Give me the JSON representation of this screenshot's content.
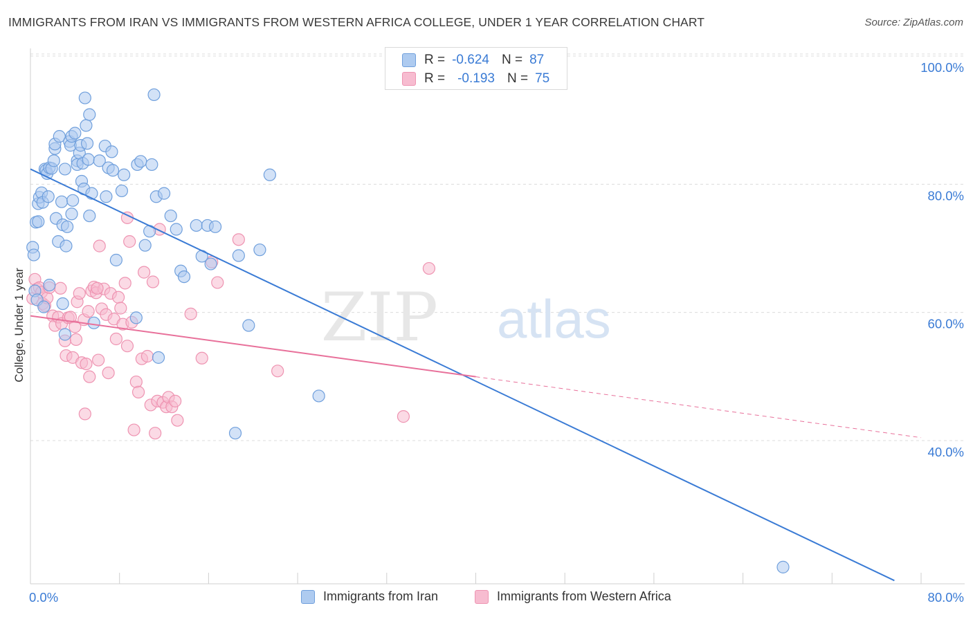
{
  "header": {
    "title": "IMMIGRANTS FROM IRAN VS IMMIGRANTS FROM WESTERN AFRICA COLLEGE, UNDER 1 YEAR CORRELATION CHART",
    "source": "Source: ZipAtlas.com"
  },
  "watermark": {
    "zip": "ZIP",
    "atlas": "atlas"
  },
  "legend_top": {
    "rows": [
      {
        "r_label": "R =",
        "r_value": "-0.624",
        "n_label": "N =",
        "n_value": "87"
      },
      {
        "r_label": "R =",
        "r_value": "-0.193",
        "n_label": "N =",
        "n_value": "75"
      }
    ]
  },
  "legend_bottom": {
    "items": [
      "Immigrants from Iran",
      "Immigrants from Western Africa"
    ]
  },
  "colors": {
    "blue_fill": "#aecbf0",
    "blue_stroke": "#6f9fdc",
    "blue_line": "#3a7bd5",
    "pink_fill": "#f7bcd0",
    "pink_stroke": "#ee93b1",
    "pink_line": "#e8709a",
    "grid": "#dcdcdc",
    "axis_text": "#3a7bd5"
  },
  "chart_data": {
    "type": "scatter",
    "title": "IMMIGRANTS FROM IRAN VS IMMIGRANTS FROM WESTERN AFRICA COLLEGE, UNDER 1 YEAR CORRELATION CHART",
    "xlabel": "",
    "ylabel": "College, Under 1 year",
    "xlim": [
      0,
      80
    ],
    "ylim": [
      20,
      102
    ],
    "x_tick_labels": [
      "0.0%",
      "80.0%"
    ],
    "y_ticks": [
      40,
      60,
      80,
      100
    ],
    "y_tick_labels": [
      "40.0%",
      "60.0%",
      "80.0%",
      "100.0%"
    ],
    "grid": true,
    "legend_position": "top-center",
    "series": [
      {
        "name": "Immigrants from Iran",
        "R": -0.624,
        "N": 87,
        "trend": {
          "x": [
            0,
            77.6
          ],
          "y": [
            84.2,
            20.0
          ]
        },
        "points": [
          [
            0.2,
            72
          ],
          [
            0.3,
            70.8
          ],
          [
            0.5,
            75.9
          ],
          [
            0.7,
            76
          ],
          [
            0.7,
            78.8
          ],
          [
            0.8,
            79.8
          ],
          [
            1.0,
            80.5
          ],
          [
            1.1,
            79
          ],
          [
            1.3,
            84.2
          ],
          [
            1.4,
            84
          ],
          [
            1.5,
            83.5
          ],
          [
            1.6,
            79.9
          ],
          [
            1.7,
            84.4
          ],
          [
            1.9,
            84.3
          ],
          [
            2.1,
            85.5
          ],
          [
            2.2,
            87.4
          ],
          [
            2.2,
            88.1
          ],
          [
            2.3,
            76.5
          ],
          [
            2.5,
            72.9
          ],
          [
            2.6,
            89.3
          ],
          [
            2.8,
            79.1
          ],
          [
            2.9,
            75.5
          ],
          [
            3.1,
            84.2
          ],
          [
            3.2,
            72.2
          ],
          [
            3.3,
            75.2
          ],
          [
            3.5,
            88.5
          ],
          [
            3.6,
            87.9
          ],
          [
            3.7,
            89.3
          ],
          [
            3.7,
            77.2
          ],
          [
            3.8,
            79.3
          ],
          [
            4.0,
            89.8
          ],
          [
            4.2,
            85.5
          ],
          [
            4.2,
            84.9
          ],
          [
            4.4,
            86.7
          ],
          [
            4.5,
            87.9
          ],
          [
            4.6,
            82.3
          ],
          [
            4.7,
            85.1
          ],
          [
            4.8,
            81.1
          ],
          [
            4.9,
            95.3
          ],
          [
            5.0,
            91
          ],
          [
            5.1,
            88.2
          ],
          [
            5.2,
            85.7
          ],
          [
            5.3,
            92.7
          ],
          [
            5.3,
            76.9
          ],
          [
            5.5,
            80.4
          ],
          [
            5.7,
            60.2
          ],
          [
            6.2,
            85.5
          ],
          [
            6.7,
            87.8
          ],
          [
            6.8,
            79.9
          ],
          [
            7.0,
            84.4
          ],
          [
            7.3,
            86.9
          ],
          [
            7.4,
            84
          ],
          [
            7.7,
            70
          ],
          [
            8.2,
            80.8
          ],
          [
            8.4,
            83.3
          ],
          [
            9.5,
            61
          ],
          [
            9.6,
            84.9
          ],
          [
            9.9,
            85.4
          ],
          [
            10.3,
            72.3
          ],
          [
            10.7,
            74.5
          ],
          [
            10.9,
            84.9
          ],
          [
            11.1,
            95.8
          ],
          [
            11.3,
            79.9
          ],
          [
            11.5,
            54.8
          ],
          [
            12.0,
            80.4
          ],
          [
            12.6,
            76.9
          ],
          [
            13.1,
            74.8
          ],
          [
            13.5,
            68.3
          ],
          [
            13.8,
            67.4
          ],
          [
            14.9,
            75.4
          ],
          [
            15.4,
            70.6
          ],
          [
            15.9,
            75.4
          ],
          [
            16.2,
            69.4
          ],
          [
            16.6,
            75.2
          ],
          [
            18.4,
            43
          ],
          [
            18.7,
            70.7
          ],
          [
            19.6,
            59.8
          ],
          [
            20.6,
            71.6
          ],
          [
            21.5,
            83.3
          ],
          [
            25.9,
            48.8
          ],
          [
            67.6,
            22.1
          ],
          [
            0.4,
            65.2
          ],
          [
            0.6,
            63.8
          ],
          [
            1.2,
            62.7
          ],
          [
            1.7,
            66.1
          ],
          [
            2.9,
            63.2
          ],
          [
            3.1,
            58.4
          ]
        ]
      },
      {
        "name": "Immigrants from Western Africa",
        "R": -0.193,
        "N": 75,
        "trend": {
          "x": [
            0,
            40
          ],
          "y": [
            61.3,
            51.8
          ]
        },
        "trend_dashed_extension": {
          "x": [
            40,
            80
          ],
          "y": [
            51.8,
            42.3
          ]
        },
        "points": [
          [
            0.2,
            64
          ],
          [
            0.4,
            67
          ],
          [
            0.6,
            65.5
          ],
          [
            0.8,
            65.7
          ],
          [
            1.0,
            65
          ],
          [
            1.1,
            63.2
          ],
          [
            1.3,
            62.9
          ],
          [
            1.5,
            64.1
          ],
          [
            1.7,
            65.7
          ],
          [
            2.0,
            61.3
          ],
          [
            2.2,
            59.8
          ],
          [
            2.5,
            61.1
          ],
          [
            2.8,
            60.1
          ],
          [
            3.1,
            57.4
          ],
          [
            3.2,
            55.1
          ],
          [
            3.4,
            61
          ],
          [
            3.6,
            61.1
          ],
          [
            3.8,
            54.8
          ],
          [
            4.0,
            59.6
          ],
          [
            4.2,
            63.5
          ],
          [
            4.4,
            64.8
          ],
          [
            4.6,
            54
          ],
          [
            4.8,
            60.7
          ],
          [
            4.9,
            46
          ],
          [
            5.0,
            53.8
          ],
          [
            5.2,
            62
          ],
          [
            5.3,
            51.8
          ],
          [
            5.5,
            65.2
          ],
          [
            5.7,
            65.8
          ],
          [
            5.9,
            64.9
          ],
          [
            6.1,
            54.4
          ],
          [
            6.2,
            72.2
          ],
          [
            6.4,
            62.4
          ],
          [
            6.6,
            65.5
          ],
          [
            6.8,
            61.5
          ],
          [
            7.0,
            52.4
          ],
          [
            7.2,
            64.8
          ],
          [
            7.5,
            60.8
          ],
          [
            7.7,
            57.7
          ],
          [
            7.9,
            64.2
          ],
          [
            8.1,
            62.5
          ],
          [
            8.3,
            60
          ],
          [
            8.5,
            66.4
          ],
          [
            8.7,
            56.6
          ],
          [
            8.9,
            72.9
          ],
          [
            9.1,
            60.3
          ],
          [
            9.3,
            43.5
          ],
          [
            9.5,
            51
          ],
          [
            9.7,
            49.4
          ],
          [
            10.0,
            54.6
          ],
          [
            10.2,
            68.1
          ],
          [
            10.5,
            55
          ],
          [
            10.8,
            47.4
          ],
          [
            11.0,
            66.6
          ],
          [
            11.2,
            43
          ],
          [
            11.4,
            48
          ],
          [
            11.6,
            74.8
          ],
          [
            11.9,
            47.8
          ],
          [
            12.2,
            47.1
          ],
          [
            12.4,
            48.6
          ],
          [
            12.7,
            47.1
          ],
          [
            13.0,
            48
          ],
          [
            13.2,
            45
          ],
          [
            14.4,
            61.6
          ],
          [
            15.4,
            54.7
          ],
          [
            16.3,
            69.7
          ],
          [
            16.8,
            66.5
          ],
          [
            18.7,
            73.2
          ],
          [
            22.2,
            52.7
          ],
          [
            33.5,
            45.6
          ],
          [
            35.8,
            68.7
          ],
          [
            8.7,
            76.6
          ],
          [
            6.0,
            65.6
          ],
          [
            2.7,
            65.6
          ],
          [
            4.1,
            57.6
          ]
        ]
      }
    ]
  }
}
